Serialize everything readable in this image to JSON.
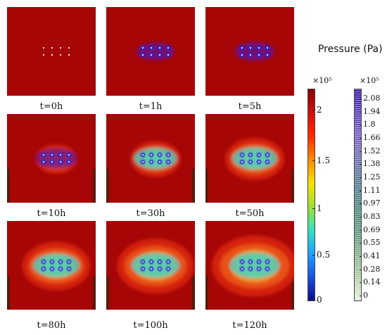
{
  "legend": {
    "title": "Pressure (Pa)",
    "main_bar": {
      "multiplier": "×10⁵",
      "ticks": [
        "2",
        "1.5",
        "1",
        "0.5",
        "0"
      ],
      "colors": [
        "#8b0000",
        "#d01010",
        "#ff2a00",
        "#ff8a00",
        "#f6e000",
        "#9fe030",
        "#35e0c0",
        "#1ea0ff",
        "#1a50e0",
        "#0c0a8c"
      ]
    },
    "small_bar": {
      "multiplier": "×10⁵",
      "ticks": [
        "2.08",
        "1.94",
        "1.8",
        "1.66",
        "1.52",
        "1.38",
        "1.25",
        "1.11",
        "0.97",
        "0.83",
        "0.69",
        "0.55",
        "0.41",
        "0.28",
        "0.14",
        "0"
      ],
      "colors": [
        "#3a1aa6",
        "#5a40c0",
        "#7c62c8",
        "#6f74b6",
        "#5a7e9a",
        "#4f8a86",
        "#5e9a80",
        "#86b48e",
        "#b2d0a6",
        "#e4f2dc"
      ]
    }
  },
  "panels": [
    {
      "label": "t=0h",
      "stage": 0
    },
    {
      "label": "t=1h",
      "stage": 1
    },
    {
      "label": "t=5h",
      "stage": 2
    },
    {
      "label": "t=10h",
      "stage": 3
    },
    {
      "label": "t=30h",
      "stage": 4
    },
    {
      "label": "t=50h",
      "stage": 5
    },
    {
      "label": "t=80h",
      "stage": 6
    },
    {
      "label": "t=100h",
      "stage": 7
    },
    {
      "label": "t=120h",
      "stage": 8
    }
  ]
}
